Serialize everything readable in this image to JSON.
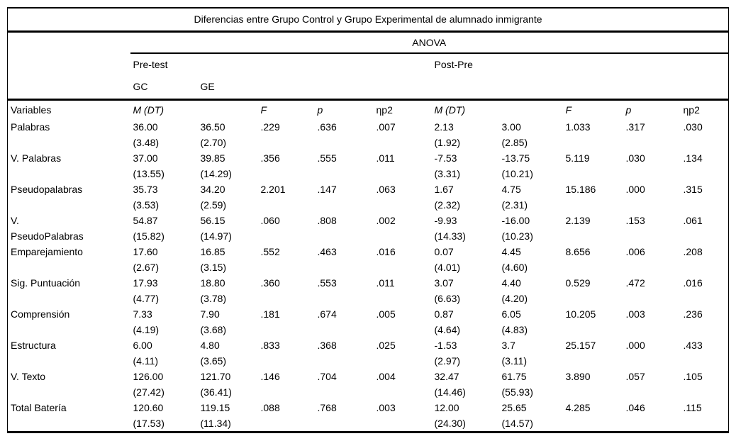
{
  "page": {
    "background_color": "#ffffff",
    "text_color": "#000000",
    "rule_color": "#000000"
  },
  "table": {
    "title": "Diferencias entre Grupo Control y Grupo Experimental de alumnado inmigrante",
    "anova_label": "ANOVA",
    "group_headers": {
      "pre": "Pre-test",
      "post": "Post-Pre"
    },
    "subgroup_headers": {
      "gc": "GC",
      "ge": "GE"
    },
    "column_headers": {
      "variables": "Variables",
      "m_dt": "M (DT)",
      "f": "F",
      "p": "p",
      "np2": "ηp2"
    },
    "rows": [
      {
        "variable": "Palabras",
        "pre_gc": "36.00\n(3.48)",
        "pre_ge": "36.50\n(2.70)",
        "pre_f": ".229",
        "pre_p": ".636",
        "pre_np2": ".007",
        "post_1": "2.13\n(1.92)",
        "post_2": "3.00\n(2.85)",
        "post_f": "1.033",
        "post_p": ".317",
        "post_np2": ".030"
      },
      {
        "variable": "V. Palabras",
        "pre_gc": "37.00\n(13.55)",
        "pre_ge": "39.85\n(14.29)",
        "pre_f": ".356",
        "pre_p": ".555",
        "pre_np2": ".011",
        "post_1": "-7.53\n(3.31)",
        "post_2": "-13.75\n(10.21)",
        "post_f": "5.119",
        "post_p": ".030",
        "post_np2": ".134"
      },
      {
        "variable": "Pseudopalabras",
        "pre_gc": "35.73\n(3.53)",
        "pre_ge": "34.20\n(2.59)",
        "pre_f": "2.201",
        "pre_p": ".147",
        "pre_np2": ".063",
        "post_1": "1.67\n(2.32)",
        "post_2": "4.75\n(2.31)",
        "post_f": "15.186",
        "post_p": ".000",
        "post_np2": ".315"
      },
      {
        "variable": "V.\nPseudoPalabras",
        "pre_gc": "54.87\n(15.82)",
        "pre_ge": "56.15\n(14.97)",
        "pre_f": ".060",
        "pre_p": ".808",
        "pre_np2": ".002",
        "post_1": "-9.93\n(14.33)",
        "post_2": "-16.00\n(10.23)",
        "post_f": "2.139",
        "post_p": ".153",
        "post_np2": ".061"
      },
      {
        "variable": "Emparejamiento",
        "pre_gc": "17.60\n(2.67)",
        "pre_ge": "16.85\n(3.15)",
        "pre_f": ".552",
        "pre_p": ".463",
        "pre_np2": ".016",
        "post_1": "0.07\n(4.01)",
        "post_2": "4.45\n(4.60)",
        "post_f": "8.656",
        "post_p": ".006",
        "post_np2": ".208"
      },
      {
        "variable": "Sig. Puntuación",
        "pre_gc": "17.93\n(4.77)",
        "pre_ge": "18.80\n(3.78)",
        "pre_f": ".360",
        "pre_p": ".553",
        "pre_np2": ".011",
        "post_1": "3.07\n(6.63)",
        "post_2": "4.40\n(4.20)",
        "post_f": "0.529",
        "post_p": ".472",
        "post_np2": ".016"
      },
      {
        "variable": "Comprensión",
        "pre_gc": "7.33\n(4.19)",
        "pre_ge": "7.90\n(3.68)",
        "pre_f": ".181",
        "pre_p": ".674",
        "pre_np2": ".005",
        "post_1": "0.87\n(4.64)",
        "post_2": "6.05\n(4.83)",
        "post_f": "10.205",
        "post_p": ".003",
        "post_np2": ".236"
      },
      {
        "variable": "Estructura",
        "pre_gc": "6.00\n(4.11)",
        "pre_ge": "4.80\n(3.65)",
        "pre_f": ".833",
        "pre_p": ".368",
        "pre_np2": ".025",
        "post_1": "-1.53\n(2.97)",
        "post_2": "3.7\n(3.11)",
        "post_f": "25.157",
        "post_p": ".000",
        "post_np2": ".433"
      },
      {
        "variable": "V. Texto",
        "pre_gc": "126.00\n(27.42)",
        "pre_ge": "121.70\n(36.41)",
        "pre_f": ".146",
        "pre_p": ".704",
        "pre_np2": ".004",
        "post_1": "32.47\n(14.46)",
        "post_2": "61.75\n(55.93)",
        "post_f": "3.890",
        "post_p": ".057",
        "post_np2": ".105"
      },
      {
        "variable": "Total Batería",
        "pre_gc": "120.60\n(17.53)",
        "pre_ge": "119.15\n(11.34)",
        "pre_f": ".088",
        "pre_p": ".768",
        "pre_np2": ".003",
        "post_1": "12.00\n(24.30)",
        "post_2": "25.65\n(14.57)",
        "post_f": "4.285",
        "post_p": ".046",
        "post_np2": ".115"
      }
    ]
  }
}
